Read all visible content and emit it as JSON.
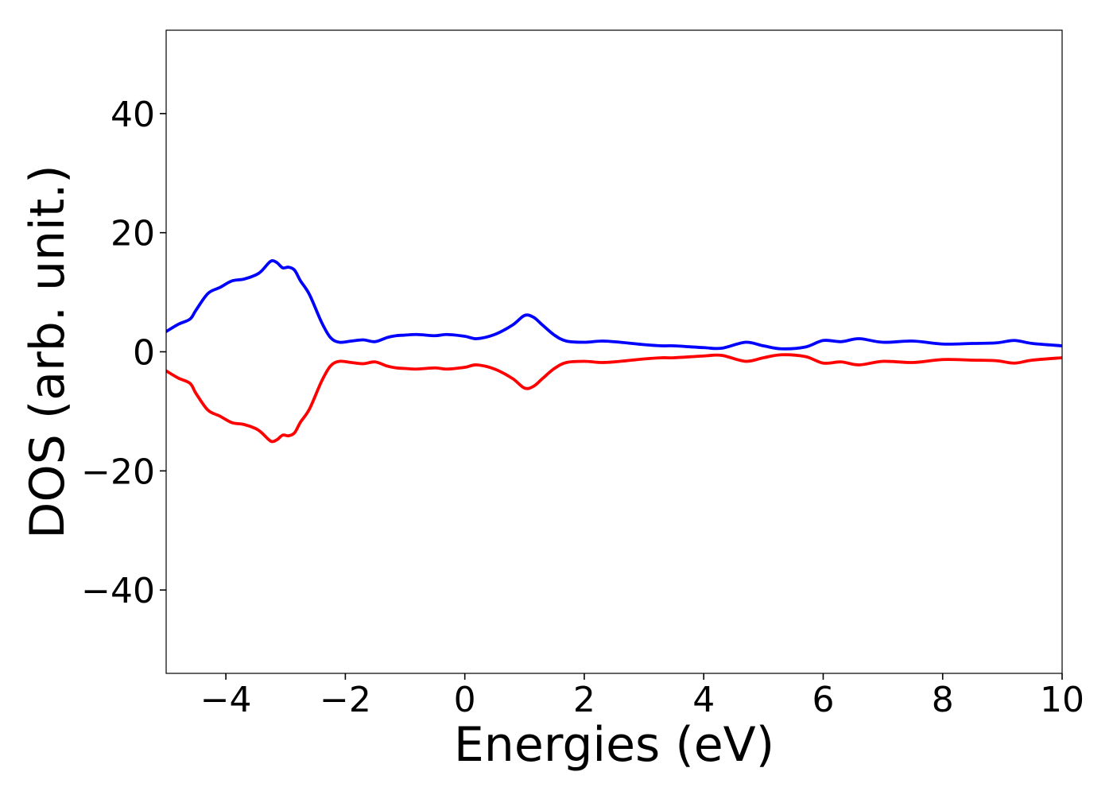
{
  "chart_data": {
    "type": "line",
    "title": "",
    "xlabel": "Energies (eV)",
    "ylabel": "DOS (arb. unit.)",
    "xlim": [
      -5,
      10
    ],
    "ylim": [
      -54,
      54
    ],
    "xticks": [
      -4,
      -2,
      0,
      2,
      4,
      6,
      8,
      10
    ],
    "xtick_labels": [
      "−4",
      "−2",
      "0",
      "2",
      "4",
      "6",
      "8",
      "10"
    ],
    "yticks": [
      -40,
      -20,
      0,
      20,
      40
    ],
    "ytick_labels": [
      "−40",
      "−20",
      "0",
      "20",
      "40"
    ],
    "grid": false,
    "series": [
      {
        "color": "#0000ff",
        "x": [
          -5.0,
          -4.8,
          -4.6,
          -4.5,
          -4.3,
          -4.1,
          -3.9,
          -3.7,
          -3.5,
          -3.4,
          -3.25,
          -3.15,
          -3.05,
          -2.95,
          -2.85,
          -2.75,
          -2.6,
          -2.4,
          -2.25,
          -2.1,
          -1.9,
          -1.7,
          -1.5,
          -1.3,
          -1.15,
          -1.0,
          -0.8,
          -0.5,
          -0.3,
          0.0,
          0.2,
          0.5,
          0.8,
          1.0,
          1.15,
          1.3,
          1.5,
          1.7,
          2.0,
          2.3,
          2.6,
          3.0,
          3.3,
          3.5,
          4.0,
          4.3,
          4.7,
          5.0,
          5.3,
          5.7,
          6.0,
          6.3,
          6.6,
          7.0,
          7.5,
          8.0,
          8.5,
          8.9,
          9.2,
          9.5,
          10.0
        ],
        "y": [
          3.4,
          4.6,
          5.5,
          7.0,
          9.8,
          10.8,
          11.9,
          12.2,
          12.9,
          13.6,
          15.2,
          15.0,
          14.1,
          14.2,
          13.7,
          11.9,
          9.6,
          5.0,
          2.4,
          1.6,
          1.8,
          2.0,
          1.7,
          2.4,
          2.7,
          2.8,
          2.9,
          2.7,
          2.9,
          2.6,
          2.2,
          2.9,
          4.5,
          6.1,
          5.8,
          4.5,
          2.8,
          1.8,
          1.6,
          1.8,
          1.6,
          1.2,
          1.0,
          1.0,
          0.7,
          0.6,
          1.6,
          1.0,
          0.5,
          0.8,
          1.9,
          1.7,
          2.2,
          1.6,
          1.8,
          1.3,
          1.4,
          1.5,
          1.9,
          1.4,
          1.0
        ]
      },
      {
        "color": "#ff0000",
        "x": [
          -5.0,
          -4.8,
          -4.6,
          -4.5,
          -4.3,
          -4.1,
          -3.9,
          -3.7,
          -3.5,
          -3.4,
          -3.25,
          -3.15,
          -3.05,
          -2.95,
          -2.85,
          -2.75,
          -2.6,
          -2.4,
          -2.25,
          -2.1,
          -1.9,
          -1.7,
          -1.5,
          -1.3,
          -1.15,
          -1.0,
          -0.8,
          -0.5,
          -0.3,
          0.0,
          0.2,
          0.5,
          0.8,
          1.0,
          1.15,
          1.3,
          1.5,
          1.7,
          2.0,
          2.3,
          2.6,
          3.0,
          3.3,
          3.5,
          4.0,
          4.3,
          4.7,
          5.0,
          5.3,
          5.7,
          6.0,
          6.3,
          6.6,
          7.0,
          7.5,
          8.0,
          8.5,
          8.9,
          9.2,
          9.5,
          10.0
        ],
        "y": [
          -3.2,
          -4.4,
          -5.3,
          -7.0,
          -9.8,
          -10.8,
          -11.9,
          -12.2,
          -12.9,
          -13.6,
          -15.0,
          -14.8,
          -14.0,
          -14.1,
          -13.6,
          -11.8,
          -9.6,
          -5.0,
          -2.4,
          -1.6,
          -1.8,
          -2.0,
          -1.7,
          -2.4,
          -2.7,
          -2.8,
          -2.9,
          -2.7,
          -2.9,
          -2.6,
          -2.2,
          -2.9,
          -4.5,
          -6.1,
          -5.8,
          -4.5,
          -2.8,
          -1.8,
          -1.6,
          -1.8,
          -1.6,
          -1.2,
          -1.0,
          -1.0,
          -0.7,
          -0.6,
          -1.6,
          -1.0,
          -0.5,
          -0.8,
          -1.9,
          -1.7,
          -2.2,
          -1.6,
          -1.8,
          -1.3,
          -1.4,
          -1.5,
          -1.9,
          -1.4,
          -1.0
        ]
      }
    ]
  }
}
